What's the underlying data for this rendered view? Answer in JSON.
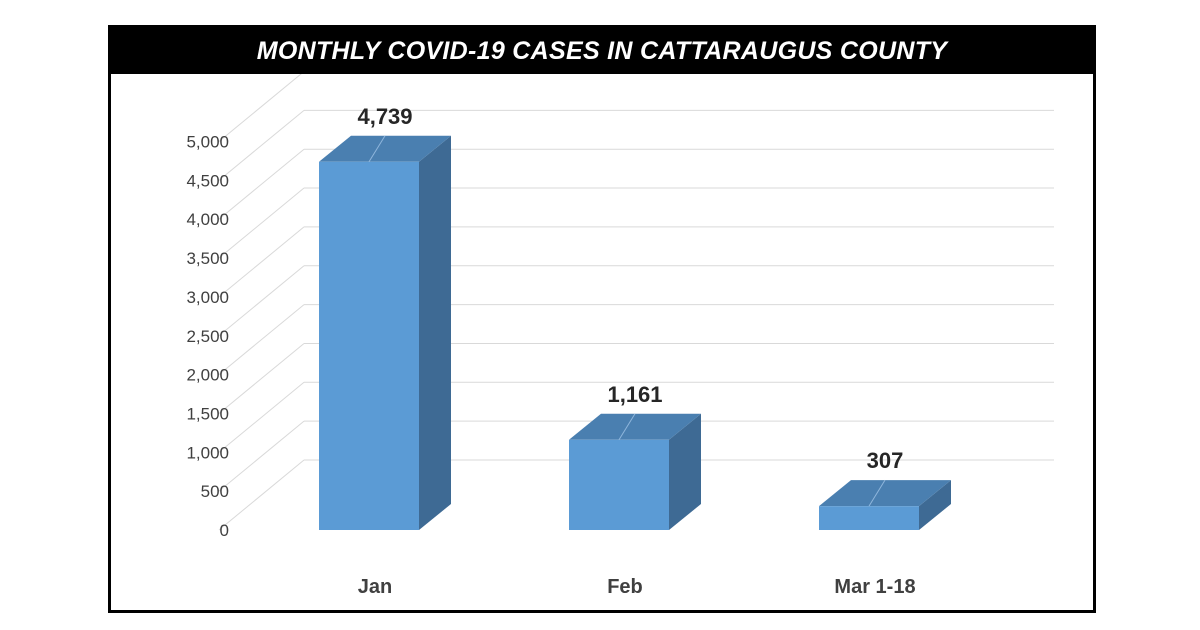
{
  "chart_data": {
    "type": "bar",
    "title": "MONTHLY COVID-19 CASES IN CATTARAUGUS COUNTY",
    "categories": [
      "Jan",
      "Feb",
      "Mar 1-18"
    ],
    "values": [
      4739,
      1161,
      307
    ],
    "data_labels": [
      "4,739",
      "1,161",
      "307"
    ],
    "yticks": [
      0,
      500,
      1000,
      1500,
      2000,
      2500,
      3000,
      3500,
      4000,
      4500,
      5000
    ],
    "ytick_labels": [
      "0",
      "500",
      "1,000",
      "1,500",
      "2,000",
      "2,500",
      "3,000",
      "3,500",
      "4,000",
      "4,500",
      "5,000"
    ],
    "ylim": [
      0,
      5500
    ],
    "grid": true,
    "legend": "none",
    "style": "3d-column",
    "colors": {
      "front": "#5b9bd5",
      "side": "#3e6a94",
      "top": "#4a7fb0",
      "grid": "#d9d9d9"
    }
  }
}
